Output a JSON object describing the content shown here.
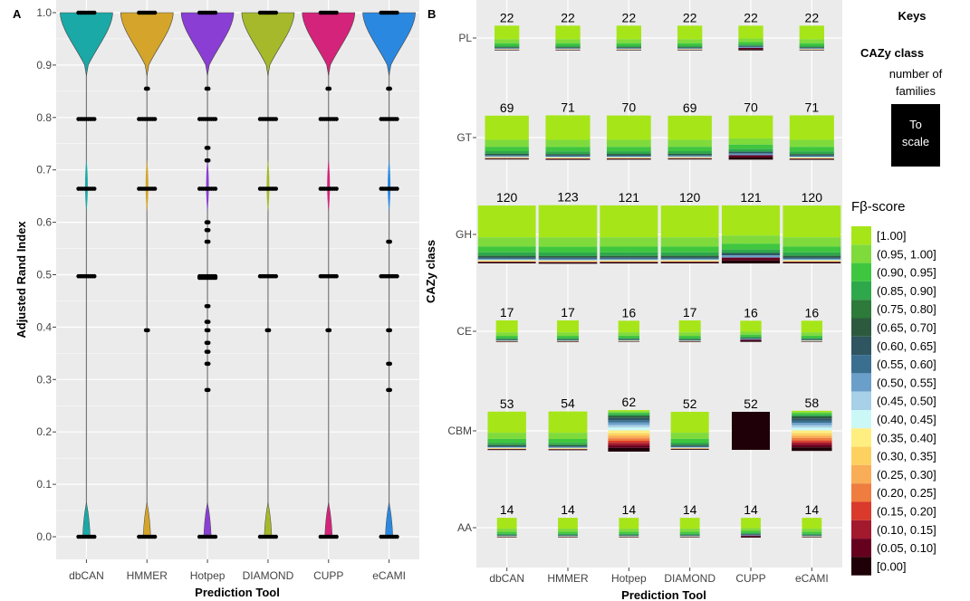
{
  "panel_a": {
    "letter": "A",
    "ylabel": "Adjusted Rand Index",
    "xlabel": "Prediction Tool",
    "y_ticks": [
      "0.0",
      "0.1",
      "0.2",
      "0.3",
      "0.4",
      "0.5",
      "0.6",
      "0.7",
      "0.8",
      "0.9",
      "1.0"
    ]
  },
  "panel_b": {
    "letter": "B",
    "ylabel": "CAZy class",
    "xlabel": "Prediction Tool"
  },
  "keys": {
    "title": "Keys",
    "class_title": "CAZy class",
    "families_line1": "number of",
    "families_line2": "families",
    "scale_line1": "To",
    "scale_line2": "scale"
  },
  "legend": {
    "title": "Fβ-score",
    "items": [
      {
        "label": "[1.00]",
        "color": "#a6e619"
      },
      {
        "label": "(0.95, 1.00]",
        "color": "#7fdb3b"
      },
      {
        "label": "(0.90, 0.95]",
        "color": "#3fc63f"
      },
      {
        "label": "(0.85, 0.90]",
        "color": "#2ea84a"
      },
      {
        "label": "(0.75, 0.80]",
        "color": "#2d7a3a"
      },
      {
        "label": "(0.65, 0.70]",
        "color": "#2d5a3f"
      },
      {
        "label": "(0.60, 0.65]",
        "color": "#2e5560"
      },
      {
        "label": "(0.55, 0.60]",
        "color": "#3b6f8f"
      },
      {
        "label": "(0.50, 0.55]",
        "color": "#6a9fc9"
      },
      {
        "label": "(0.45, 0.50]",
        "color": "#a8d0e6"
      },
      {
        "label": "(0.40, 0.45]",
        "color": "#ccf7f7"
      },
      {
        "label": "(0.35, 0.40]",
        "color": "#ffee80"
      },
      {
        "label": "(0.30, 0.35]",
        "color": "#fdd160"
      },
      {
        "label": "(0.25, 0.30]",
        "color": "#f9ad57"
      },
      {
        "label": "(0.20, 0.25]",
        "color": "#ef7d3f"
      },
      {
        "label": "(0.15, 0.20]",
        "color": "#d93a2b"
      },
      {
        "label": "(0.10, 0.15]",
        "color": "#a3192d"
      },
      {
        "label": "(0.05, 0.10]",
        "color": "#66001f"
      },
      {
        "label": "[0.00]",
        "color": "#1f0008"
      }
    ]
  },
  "chart_data": [
    {
      "type": "violin",
      "xlabel": "Prediction Tool",
      "ylabel": "Adjusted Rand Index",
      "ylim": [
        0,
        1
      ],
      "categories": [
        "dbCAN",
        "HMMER",
        "Hotpep",
        "DIAMOND",
        "CUPP",
        "eCAMI"
      ],
      "colors": [
        "#1aa9a6",
        "#d4a52a",
        "#8a3ed4",
        "#a6b92a",
        "#d4237a",
        "#2a88e0"
      ],
      "points": [
        [
          1.0,
          0.797,
          0.664,
          0.497,
          0.0
        ],
        [
          1.0,
          0.855,
          0.797,
          0.664,
          0.394,
          0.0
        ],
        [
          1.0,
          0.855,
          0.797,
          0.742,
          0.718,
          0.664,
          0.6,
          0.585,
          0.563,
          0.497,
          0.494,
          0.44,
          0.41,
          0.394,
          0.37,
          0.353,
          0.33,
          0.28,
          0.0
        ],
        [
          1.0,
          0.797,
          0.664,
          0.497,
          0.394,
          0.0
        ],
        [
          1.0,
          0.855,
          0.797,
          0.664,
          0.497,
          0.394,
          0.0
        ],
        [
          1.0,
          0.855,
          0.797,
          0.664,
          0.563,
          0.497,
          0.394,
          0.33,
          0.28,
          0.0
        ]
      ]
    },
    {
      "type": "stacked-bar-grid",
      "xlabel": "Prediction Tool",
      "ylabel": "CAZy class",
      "tools": [
        "dbCAN",
        "HMMER",
        "Hotpep",
        "DIAMOND",
        "CUPP",
        "eCAMI"
      ],
      "classes": [
        "PL",
        "GT",
        "GH",
        "CE",
        "CBM",
        "AA"
      ],
      "families": {
        "PL": [
          22,
          22,
          22,
          22,
          22,
          22
        ],
        "GT": [
          69,
          71,
          70,
          69,
          70,
          71
        ],
        "GH": [
          120,
          123,
          121,
          120,
          121,
          120
        ],
        "CE": [
          17,
          17,
          16,
          17,
          16,
          16
        ],
        "CBM": [
          53,
          54,
          62,
          52,
          52,
          58
        ],
        "AA": [
          14,
          14,
          14,
          14,
          14,
          14
        ]
      }
    }
  ]
}
